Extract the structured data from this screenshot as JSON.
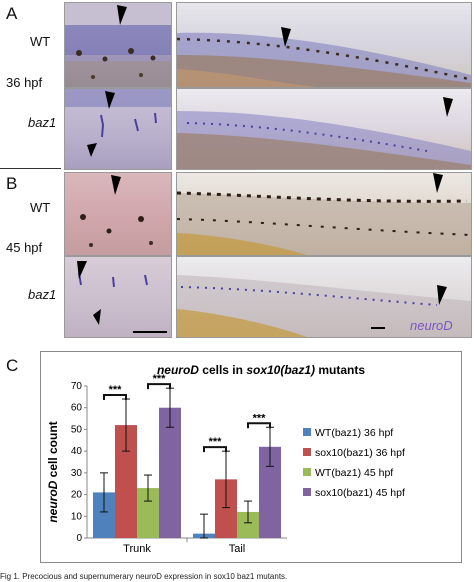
{
  "figure": {
    "panel_a": {
      "letter": "A",
      "wt": "WT",
      "stage": "36 hpf",
      "mutant": "baz1"
    },
    "panel_b": {
      "letter": "B",
      "wt": "WT",
      "stage": "45 hpf",
      "mutant": "baz1"
    },
    "stain_label": "neuroD",
    "panel_c": {
      "letter": "C"
    },
    "caption": "Fig 1. Precocious and supernumerary neuroD expression in sox10 baz1 mutants."
  },
  "chart_data": {
    "type": "bar",
    "title_parts": [
      "neuroD",
      " cells  in ",
      "sox10(baz1)",
      " mutants"
    ],
    "ylabel_parts": [
      "neuroD",
      " cell count"
    ],
    "xlabel": "",
    "ylim": [
      0,
      70
    ],
    "yticks": [
      0,
      10,
      20,
      30,
      40,
      50,
      60,
      70
    ],
    "categories": [
      "Trunk",
      "Tail"
    ],
    "series": [
      {
        "name": "WT(baz1) 36 hpf",
        "color": "#4f81bd",
        "values": [
          21,
          2
        ],
        "errors": [
          9,
          9
        ]
      },
      {
        "name": "sox10(baz1) 36 hpf",
        "color": "#c0504d",
        "values": [
          52,
          27
        ],
        "errors": [
          12,
          13
        ]
      },
      {
        "name": "WT(baz1) 45 hpf",
        "color": "#9bbb59",
        "values": [
          23,
          12
        ],
        "errors": [
          6,
          5
        ]
      },
      {
        "name": "sox10(baz1) 45 hpf",
        "color": "#8064a2",
        "values": [
          60,
          42
        ],
        "errors": [
          9,
          9
        ]
      }
    ],
    "significance": [
      {
        "category": "Trunk",
        "between": [
          0,
          1
        ],
        "label": "***"
      },
      {
        "category": "Trunk",
        "between": [
          2,
          3
        ],
        "label": "***"
      },
      {
        "category": "Tail",
        "between": [
          0,
          1
        ],
        "label": "***"
      },
      {
        "category": "Tail",
        "between": [
          2,
          3
        ],
        "label": "***"
      }
    ],
    "legend_position": "right",
    "grid": false
  }
}
